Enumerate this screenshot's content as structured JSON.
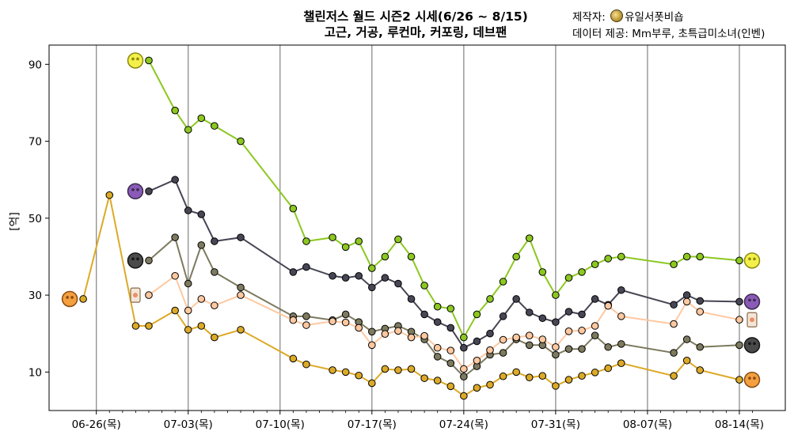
{
  "chart_data": {
    "type": "line",
    "title": "챌린저스 월드 시즌2 시세(6/26 ~ 8/15)",
    "subtitle": "고근, 거공, 루컨마, 커포링, 데브팬",
    "xlabel": "",
    "ylabel": "[억]",
    "credit": {
      "maker_label": "제작자:",
      "maker_name": "유일서폿비숍",
      "source_label": "데이터 제공: Mm부루, 초특급미소녀(인벤)"
    },
    "ylim": [
      0,
      95
    ],
    "yticks": [
      10,
      30,
      50,
      70,
      90
    ],
    "xlim": [
      -3.6,
      52.5
    ],
    "xticks": [
      {
        "x": 0,
        "label": "06-26(목)"
      },
      {
        "x": 7,
        "label": "07-03(목)"
      },
      {
        "x": 14,
        "label": "07-10(목)"
      },
      {
        "x": 21,
        "label": "07-17(목)"
      },
      {
        "x": 28,
        "label": "07-24(목)"
      },
      {
        "x": 35,
        "label": "07-31(목)"
      },
      {
        "x": 42,
        "label": "08-07(목)"
      },
      {
        "x": 49,
        "label": "08-14(목)"
      }
    ],
    "minor_ticks": [
      1,
      2,
      3,
      4,
      5,
      6,
      8,
      9,
      10,
      11,
      12,
      13,
      15,
      16,
      17,
      18,
      19,
      20,
      22,
      23,
      24,
      25,
      26,
      27,
      29,
      30,
      31,
      32,
      33,
      34,
      36,
      37,
      38,
      39,
      40,
      41,
      43,
      44,
      45,
      46,
      47,
      48,
      50
    ],
    "grid": "vertical-weekly",
    "series": [
      {
        "color": "#8cc820",
        "icon": "yellow-sprite-icon",
        "points": [
          [
            4,
            91
          ],
          [
            6,
            78
          ],
          [
            7,
            73
          ],
          [
            8,
            76
          ],
          [
            9,
            74
          ],
          [
            11,
            70
          ],
          [
            15,
            52.5
          ],
          [
            16,
            44
          ],
          [
            18,
            45
          ],
          [
            19,
            42.5
          ],
          [
            20,
            44
          ],
          [
            21,
            37
          ],
          [
            22,
            40
          ],
          [
            23,
            44.5
          ],
          [
            24,
            40
          ],
          [
            25,
            32.5
          ],
          [
            26,
            27
          ],
          [
            27,
            26.5
          ],
          [
            28,
            19
          ],
          [
            29,
            25
          ],
          [
            30,
            29
          ],
          [
            31,
            33.5
          ],
          [
            32,
            40
          ],
          [
            33,
            44.8
          ],
          [
            34,
            36
          ],
          [
            35,
            30
          ],
          [
            36,
            34.5
          ],
          [
            37,
            36
          ],
          [
            38,
            38
          ],
          [
            39,
            39.5
          ],
          [
            40,
            40
          ],
          [
            44,
            38
          ],
          [
            45,
            40
          ],
          [
            46,
            40
          ],
          [
            49,
            39
          ]
        ]
      },
      {
        "color": "#464655",
        "icon": "purple-sprite-icon",
        "points": [
          [
            4,
            57
          ],
          [
            6,
            60
          ],
          [
            7,
            52
          ],
          [
            8,
            51
          ],
          [
            9,
            44
          ],
          [
            11,
            45
          ],
          [
            15,
            36
          ],
          [
            16,
            37.3
          ],
          [
            18,
            35
          ],
          [
            19,
            34.5
          ],
          [
            20,
            35
          ],
          [
            21,
            32
          ],
          [
            22,
            34.5
          ],
          [
            23,
            33
          ],
          [
            24,
            29
          ],
          [
            25,
            25
          ],
          [
            26,
            23
          ],
          [
            27,
            21.5
          ],
          [
            28,
            16.3
          ],
          [
            29,
            18
          ],
          [
            30,
            20
          ],
          [
            31,
            24.5
          ],
          [
            32,
            29
          ],
          [
            33,
            25.5
          ],
          [
            34,
            24
          ],
          [
            35,
            23
          ],
          [
            36,
            25.7
          ],
          [
            37,
            25
          ],
          [
            38,
            29
          ],
          [
            39,
            27.5
          ],
          [
            40,
            31.3
          ],
          [
            44,
            27.5
          ],
          [
            45,
            30
          ],
          [
            46,
            28.5
          ],
          [
            49,
            28.3
          ]
        ]
      },
      {
        "color": "#7d7a5f",
        "icon": "dark-sprite-icon",
        "points": [
          [
            4,
            39
          ],
          [
            6,
            45
          ],
          [
            7,
            33
          ],
          [
            8,
            43
          ],
          [
            9,
            36
          ],
          [
            11,
            32
          ],
          [
            15,
            24.5
          ],
          [
            16,
            24.5
          ],
          [
            18,
            23.5
          ],
          [
            19,
            25
          ],
          [
            20,
            23
          ],
          [
            21,
            20.5
          ],
          [
            22,
            21.3
          ],
          [
            23,
            22
          ],
          [
            24,
            20.5
          ],
          [
            25,
            18.5
          ],
          [
            26,
            14
          ],
          [
            27,
            12.3
          ],
          [
            28,
            8.8
          ],
          [
            29,
            11.5
          ],
          [
            30,
            14.5
          ],
          [
            31,
            15
          ],
          [
            32,
            18.5
          ],
          [
            33,
            17
          ],
          [
            34,
            17
          ],
          [
            35,
            14.5
          ],
          [
            36,
            16
          ],
          [
            37,
            16
          ],
          [
            38,
            19.5
          ],
          [
            39,
            16.5
          ],
          [
            40,
            17.3
          ],
          [
            44,
            15
          ],
          [
            45,
            18.5
          ],
          [
            46,
            16.5
          ],
          [
            49,
            17
          ]
        ]
      },
      {
        "color": "#ffc8a0",
        "icon": "card-sprite-icon",
        "points": [
          [
            4,
            30
          ],
          [
            6,
            35
          ],
          [
            7,
            26
          ],
          [
            8,
            29
          ],
          [
            9,
            27.3
          ],
          [
            11,
            30
          ],
          [
            15,
            23.5
          ],
          [
            16,
            22.2
          ],
          [
            18,
            23.2
          ],
          [
            19,
            22.9
          ],
          [
            20,
            21.5
          ],
          [
            21,
            17
          ],
          [
            22,
            19.9
          ],
          [
            23,
            20.7
          ],
          [
            24,
            19
          ],
          [
            25,
            19.4
          ],
          [
            26,
            16.3
          ],
          [
            27,
            15.6
          ],
          [
            28,
            10.8
          ],
          [
            29,
            13
          ],
          [
            30,
            15.7
          ],
          [
            31,
            18.4
          ],
          [
            32,
            19
          ],
          [
            33,
            19.5
          ],
          [
            34,
            18.5
          ],
          [
            35,
            16.5
          ],
          [
            36,
            20.6
          ],
          [
            37,
            20.8
          ],
          [
            38,
            22
          ],
          [
            39,
            27.2
          ],
          [
            40,
            24.5
          ],
          [
            44,
            22.5
          ],
          [
            45,
            28.3
          ],
          [
            46,
            25.7
          ],
          [
            49,
            23.6
          ]
        ]
      },
      {
        "color": "#dcaa28",
        "icon": "orange-sprite-icon",
        "points": [
          [
            -1,
            29
          ],
          [
            1,
            56
          ],
          [
            3,
            22
          ],
          [
            4,
            22
          ],
          [
            6,
            26
          ],
          [
            7,
            21
          ],
          [
            8,
            22
          ],
          [
            9,
            19
          ],
          [
            11,
            21
          ],
          [
            15,
            13.5
          ],
          [
            16,
            12
          ],
          [
            18,
            10.5
          ],
          [
            19,
            10
          ],
          [
            20,
            9.1
          ],
          [
            21,
            7.1
          ],
          [
            22,
            10.8
          ],
          [
            23,
            10.5
          ],
          [
            24,
            10.8
          ],
          [
            25,
            8.4
          ],
          [
            26,
            7.8
          ],
          [
            27,
            6.3
          ],
          [
            28,
            3.8
          ],
          [
            29,
            5.9
          ],
          [
            30,
            6.7
          ],
          [
            31,
            8.9
          ],
          [
            32,
            10
          ],
          [
            33,
            8.6
          ],
          [
            34,
            9
          ],
          [
            35,
            6.4
          ],
          [
            36,
            8
          ],
          [
            37,
            9
          ],
          [
            38,
            9.9
          ],
          [
            39,
            11
          ],
          [
            40,
            12.3
          ],
          [
            44,
            9
          ],
          [
            45,
            13
          ],
          [
            46,
            10.5
          ],
          [
            49,
            8
          ]
        ]
      }
    ]
  }
}
